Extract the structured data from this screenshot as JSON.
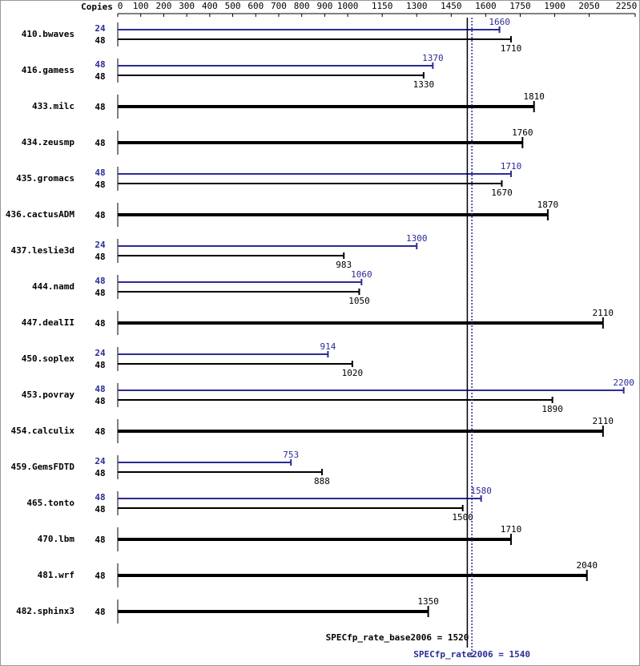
{
  "chart_data": {
    "type": "bar",
    "orientation": "horizontal",
    "copies_label": "Copies",
    "categories": [
      "410.bwaves",
      "416.gamess",
      "433.milc",
      "434.zeusmp",
      "435.gromacs",
      "436.cactusADM",
      "437.leslie3d",
      "444.namd",
      "447.dealII",
      "450.soplex",
      "453.povray",
      "454.calculix",
      "459.GemsFDTD",
      "465.tonto",
      "470.lbm",
      "481.wrf",
      "482.sphinx3"
    ],
    "series": [
      {
        "color": "#000000",
        "copies": [
          48,
          48,
          48,
          48,
          48,
          48,
          48,
          48,
          48,
          48,
          48,
          48,
          48,
          48,
          48,
          48,
          48
        ],
        "values": [
          1710,
          1330,
          1810,
          1760,
          1670,
          1870,
          983,
          1050,
          2110,
          1020,
          1890,
          2110,
          888,
          1500,
          1710,
          2040,
          1350
        ]
      },
      {
        "color": "#2b2b96",
        "copies": [
          24,
          48,
          null,
          null,
          48,
          null,
          24,
          48,
          null,
          24,
          48,
          null,
          24,
          48,
          null,
          null,
          null
        ],
        "values": [
          1660,
          1370,
          null,
          null,
          1710,
          null,
          1300,
          1060,
          null,
          914,
          2200,
          null,
          753,
          1580,
          null,
          null,
          null
        ]
      }
    ],
    "xlim": [
      0,
      2250
    ],
    "xticks": [
      0,
      100,
      200,
      300,
      400,
      500,
      600,
      700,
      800,
      900,
      1000,
      1150,
      1300,
      1450,
      1600,
      1750,
      1900,
      2050,
      2250
    ],
    "reference_lines": [
      {
        "label": "SPECfp_rate_base2006 = 1520",
        "value": 1520,
        "color": "#000000",
        "style": "solid"
      },
      {
        "label": "SPECfp_rate2006 = 1540",
        "value": 1540,
        "color": "#2b2b96",
        "style": "dotted"
      }
    ]
  }
}
